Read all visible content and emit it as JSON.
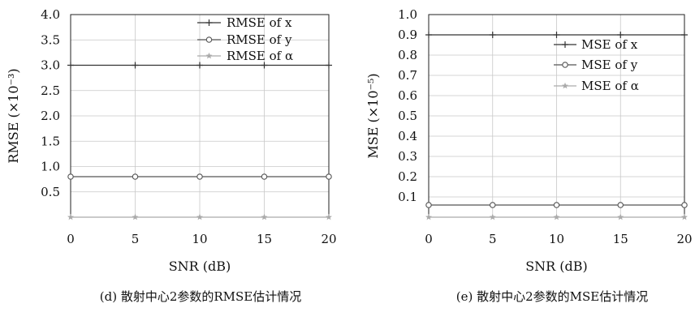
{
  "chart_data": [
    {
      "type": "line",
      "caption": "(d) 散射中心2参数的RMSE估计情况",
      "xlabel": "SNR (dB)",
      "ylabel": "RMSE (×10⁻³)",
      "x_ticks": [
        "0",
        "5",
        "10",
        "15",
        "20"
      ],
      "y_ticks": [
        "0.5",
        "1.0",
        "1.5",
        "2.0",
        "2.5",
        "3.0",
        "3.5",
        "4.0"
      ],
      "xlim": [
        0,
        20
      ],
      "ylim": [
        0,
        4.0
      ],
      "grid": true,
      "legend_position": "top-right",
      "series": [
        {
          "name": "RMSE of x",
          "marker": "plus",
          "color": "#333333",
          "x": [
            0,
            5,
            10,
            15,
            20
          ],
          "values": [
            3.0,
            3.0,
            3.0,
            3.0,
            3.0
          ]
        },
        {
          "name": "RMSE of y",
          "marker": "circle",
          "color": "#555555",
          "x": [
            0,
            5,
            10,
            15,
            20
          ],
          "values": [
            0.8,
            0.8,
            0.8,
            0.8,
            0.8
          ]
        },
        {
          "name": "RMSE of α",
          "marker": "star",
          "color": "#aaaaaa",
          "x": [
            0,
            5,
            10,
            15,
            20
          ],
          "values": [
            0.0,
            0.0,
            0.0,
            0.0,
            0.0
          ]
        }
      ]
    },
    {
      "type": "line",
      "caption": "(e) 散射中心2参数的MSE估计情况",
      "xlabel": "SNR (dB)",
      "ylabel": "MSE (×10⁻⁵)",
      "x_ticks": [
        "0",
        "5",
        "10",
        "15",
        "20"
      ],
      "y_ticks": [
        "0.1",
        "0.2",
        "0.3",
        "0.4",
        "0.5",
        "0.6",
        "0.7",
        "0.8",
        "0.9",
        "1.0"
      ],
      "xlim": [
        0,
        20
      ],
      "ylim": [
        0,
        1.0
      ],
      "grid": true,
      "legend_position": "top-right",
      "series": [
        {
          "name": "MSE of x",
          "marker": "plus",
          "color": "#333333",
          "x": [
            0,
            5,
            10,
            15,
            20
          ],
          "values": [
            0.9,
            0.9,
            0.9,
            0.9,
            0.9
          ]
        },
        {
          "name": "MSE of y",
          "marker": "circle",
          "color": "#555555",
          "x": [
            0,
            5,
            10,
            15,
            20
          ],
          "values": [
            0.06,
            0.06,
            0.06,
            0.06,
            0.06
          ]
        },
        {
          "name": "MSE of α",
          "marker": "star",
          "color": "#aaaaaa",
          "x": [
            0,
            5,
            10,
            15,
            20
          ],
          "values": [
            0.0,
            0.0,
            0.0,
            0.0,
            0.0
          ]
        }
      ]
    }
  ]
}
